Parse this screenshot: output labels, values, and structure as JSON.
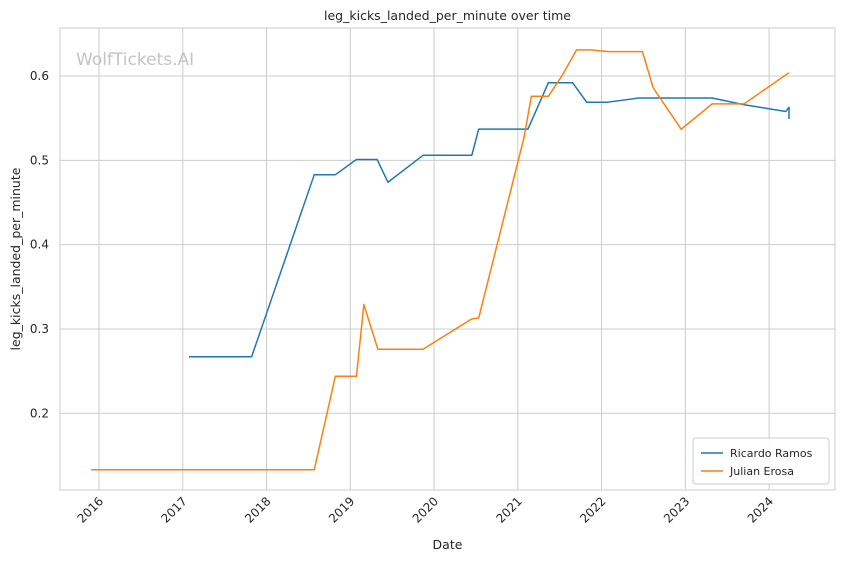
{
  "chart_data": {
    "type": "line",
    "title": "leg_kicks_landed_per_minute over time",
    "xlabel": "Date",
    "ylabel": "leg_kicks_landed_per_minute",
    "watermark": "WolfTickets.AI",
    "x_ticks": [
      "2016",
      "2017",
      "2018",
      "2019",
      "2020",
      "2021",
      "2022",
      "2023",
      "2024"
    ],
    "y_ticks": [
      "0.2",
      "0.3",
      "0.4",
      "0.5",
      "0.6"
    ],
    "xlim": [
      "2015-07-15",
      "2024-10-15"
    ],
    "ylim": [
      0.109,
      0.657
    ],
    "grid": true,
    "legend_position": "bottom-right",
    "colors": {
      "series_0": "#1f77b4",
      "series_1": "#ff7f0e",
      "grid": "#cccccc",
      "axes_edge": "#cccccc"
    },
    "series": [
      {
        "name": "Ricardo Ramos",
        "points": [
          [
            "2017-01-28",
            0.267
          ],
          [
            "2017-10-28",
            0.267
          ],
          [
            "2018-07-28",
            0.483
          ],
          [
            "2018-10-28",
            0.483
          ],
          [
            "2019-01-28",
            0.501
          ],
          [
            "2019-04-28",
            0.501
          ],
          [
            "2019-06-14",
            0.474
          ],
          [
            "2019-11-14",
            0.506
          ],
          [
            "2020-06-14",
            0.506
          ],
          [
            "2020-07-14",
            0.537
          ],
          [
            "2021-02-14",
            0.537
          ],
          [
            "2021-05-14",
            0.592
          ],
          [
            "2021-08-28",
            0.592
          ],
          [
            "2021-10-28",
            0.569
          ],
          [
            "2022-01-28",
            0.569
          ],
          [
            "2022-06-14",
            0.574
          ],
          [
            "2023-04-28",
            0.574
          ],
          [
            "2023-09-14",
            0.566
          ],
          [
            "2024-03-14",
            0.558
          ],
          [
            "2024-03-28",
            0.563
          ],
          [
            "2024-03-28",
            0.549
          ]
        ]
      },
      {
        "name": "Julian Erosa",
        "points": [
          [
            "2015-11-28",
            0.133
          ],
          [
            "2018-07-28",
            0.133
          ],
          [
            "2018-10-28",
            0.244
          ],
          [
            "2019-01-28",
            0.244
          ],
          [
            "2019-03-01",
            0.329
          ],
          [
            "2019-05-01",
            0.276
          ],
          [
            "2019-11-14",
            0.276
          ],
          [
            "2020-06-14",
            0.312
          ],
          [
            "2020-07-14",
            0.313
          ],
          [
            "2021-01-28",
            0.527
          ],
          [
            "2021-03-01",
            0.576
          ],
          [
            "2021-05-14",
            0.576
          ],
          [
            "2021-07-14",
            0.601
          ],
          [
            "2021-09-14",
            0.631
          ],
          [
            "2021-11-14",
            0.631
          ],
          [
            "2022-02-01",
            0.629
          ],
          [
            "2022-06-28",
            0.629
          ],
          [
            "2022-08-14",
            0.586
          ],
          [
            "2022-12-14",
            0.537
          ],
          [
            "2023-04-28",
            0.567
          ],
          [
            "2023-09-14",
            0.567
          ],
          [
            "2024-03-28",
            0.604
          ]
        ]
      }
    ]
  }
}
